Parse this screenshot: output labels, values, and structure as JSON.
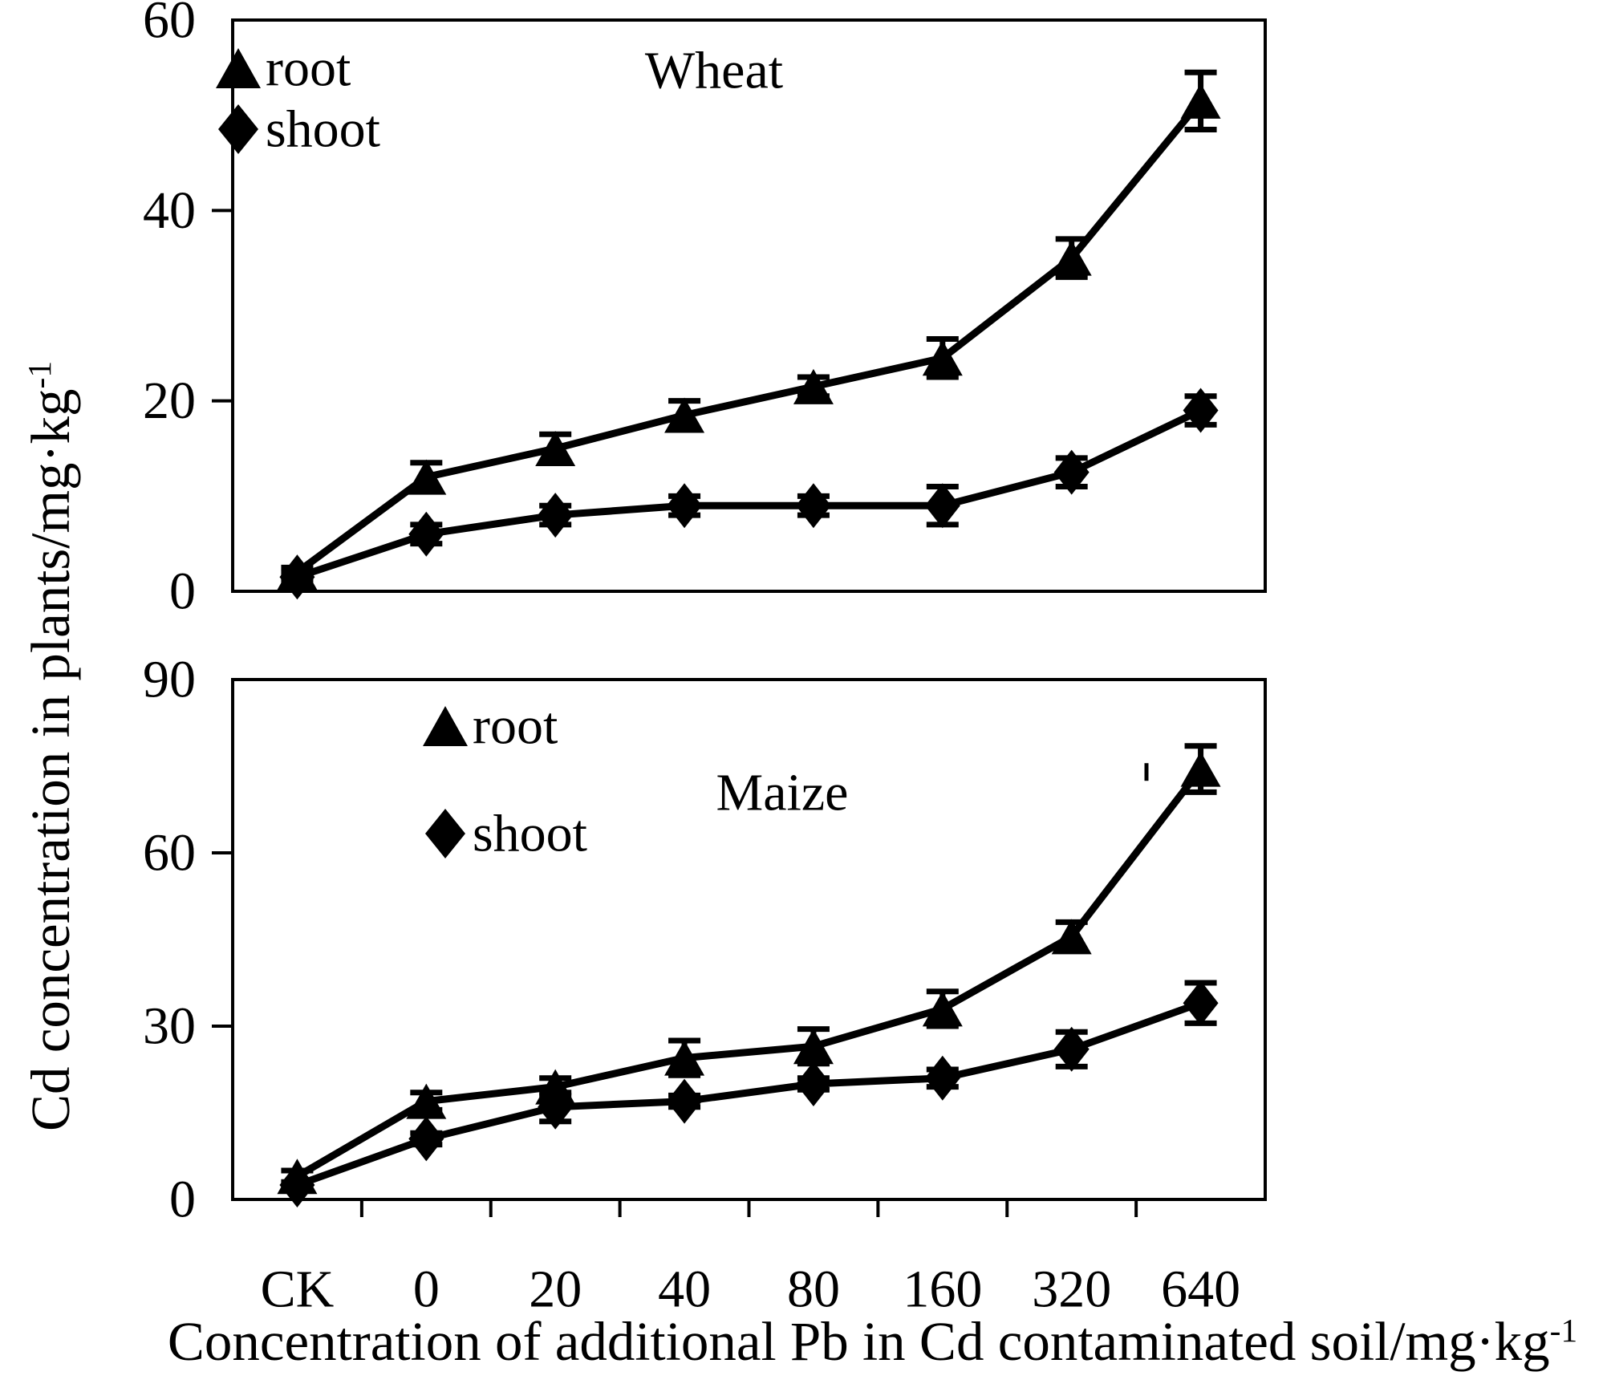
{
  "figure": {
    "y_axis": {
      "label": "Cd concentration in plants/mg·kg",
      "label_sup": "-1"
    },
    "x_axis": {
      "label": "Concentration of additional Pb in Cd contaminated soil/mg·kg",
      "label_sup": "-1"
    },
    "colors": {
      "foreground": "#000000",
      "background": "#ffffff"
    }
  },
  "chart_data": [
    {
      "type": "line",
      "title": "Wheat",
      "categories": [
        "CK",
        "0",
        "20",
        "40",
        "80",
        "160",
        "320",
        "640"
      ],
      "ylim": [
        0,
        60
      ],
      "yticks": [
        0,
        20,
        40,
        60
      ],
      "grid": false,
      "legend_position": "top-left",
      "legend": [
        "root",
        "shoot"
      ],
      "series": [
        {
          "name": "root",
          "marker": "triangle",
          "values": [
            2,
            12,
            15,
            18.5,
            21.5,
            24.5,
            35,
            51.5
          ],
          "errors": [
            0.5,
            1.5,
            1.5,
            1.5,
            1,
            2,
            2,
            3
          ]
        },
        {
          "name": "shoot",
          "marker": "diamond",
          "values": [
            1.5,
            6,
            8,
            9,
            9,
            9,
            12.5,
            19
          ],
          "errors": [
            0.5,
            1,
            1,
            1,
            1,
            2,
            1.5,
            1.5
          ]
        }
      ]
    },
    {
      "type": "line",
      "title": "Maize",
      "categories": [
        "CK",
        "0",
        "20",
        "40",
        "80",
        "160",
        "320",
        "640"
      ],
      "ylim": [
        0,
        90
      ],
      "yticks": [
        0,
        30,
        60,
        90
      ],
      "grid": false,
      "legend_position": "top-left",
      "legend": [
        "root",
        "shoot"
      ],
      "series": [
        {
          "name": "root",
          "marker": "triangle",
          "values": [
            4,
            17,
            19.5,
            24.5,
            26.5,
            33,
            45.5,
            74.5
          ],
          "errors": [
            1,
            1.5,
            1.5,
            3,
            3,
            3,
            2.5,
            4
          ]
        },
        {
          "name": "shoot",
          "marker": "diamond",
          "values": [
            2.5,
            10.5,
            16,
            17,
            20,
            21,
            26,
            34
          ],
          "errors": [
            0.5,
            1,
            2.5,
            1,
            1,
            1.5,
            3,
            3.5
          ]
        }
      ],
      "annotations": [
        {
          "type": "stray-dash",
          "x_frac": 0.885,
          "value": 74,
          "text": "'"
        }
      ]
    }
  ]
}
